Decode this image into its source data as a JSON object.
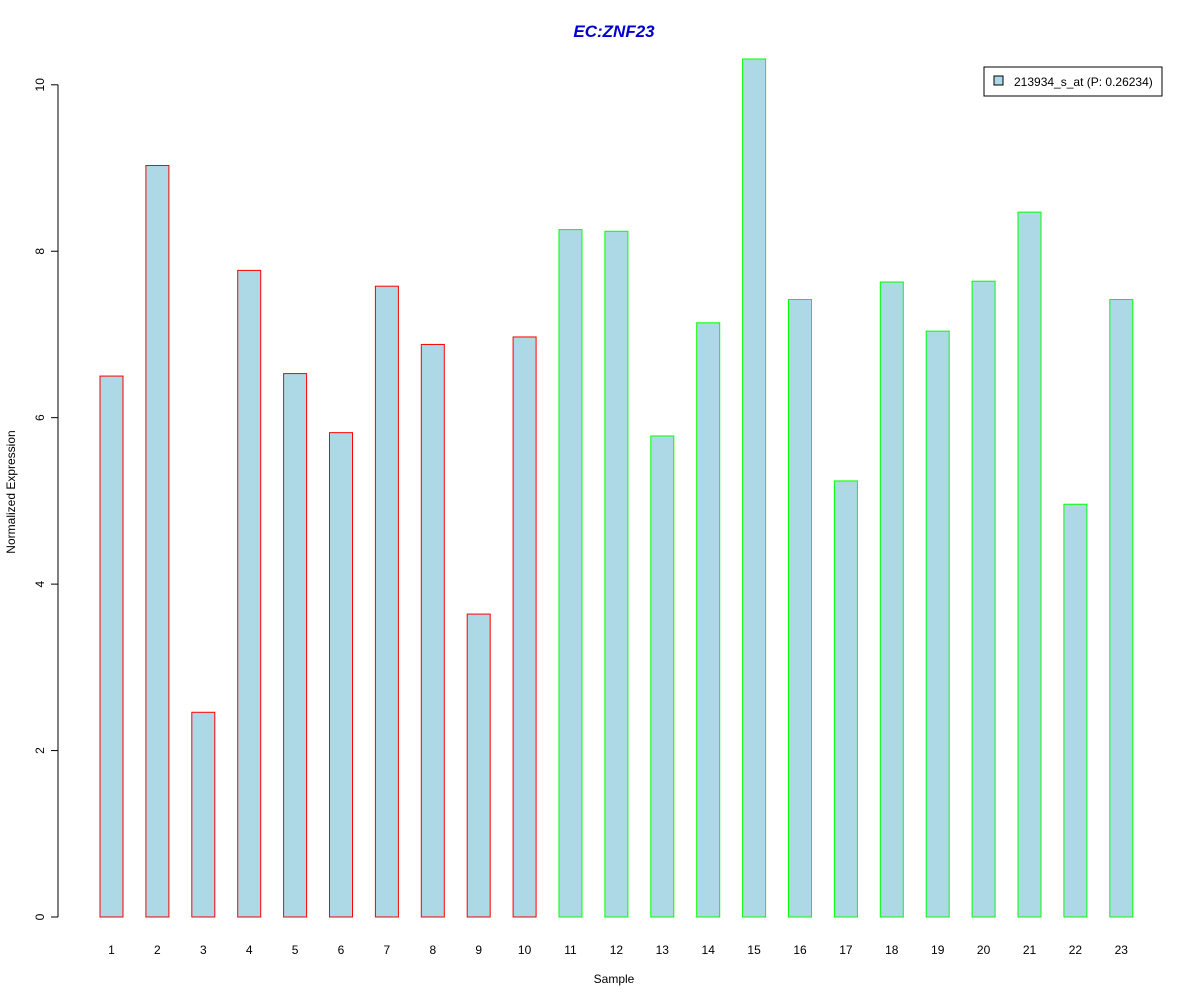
{
  "chart_data": {
    "type": "bar",
    "title": "EC:ZNF23",
    "xlabel": "Sample",
    "ylabel": "Normalized Expression",
    "categories": [
      "1",
      "2",
      "3",
      "4",
      "5",
      "6",
      "7",
      "8",
      "9",
      "10",
      "11",
      "12",
      "13",
      "14",
      "15",
      "16",
      "17",
      "18",
      "19",
      "20",
      "21",
      "22",
      "23"
    ],
    "series": [
      {
        "name": "213934_s_at (P: 0.26234)",
        "values": [
          6.5,
          9.03,
          2.46,
          7.77,
          6.53,
          5.82,
          7.58,
          6.88,
          3.64,
          6.97,
          8.26,
          8.24,
          5.78,
          7.14,
          10.31,
          7.42,
          5.24,
          7.63,
          7.04,
          7.64,
          8.47,
          4.96,
          7.42
        ]
      }
    ],
    "ylim": [
      0,
      10.31
    ],
    "yticks": [
      0,
      2,
      4,
      6,
      8,
      10
    ],
    "grid": false,
    "legend_position": "top-right",
    "colors": {
      "title": "#0000cc",
      "bar_fill": "#add8e6",
      "group1_border": "#ff0000",
      "group2_border": "#00ff00",
      "axis": "#000000"
    },
    "border_groups": [
      "group1",
      "group1",
      "group1",
      "group1",
      "group1",
      "group1",
      "group1",
      "group1",
      "group1",
      "group1",
      "group2",
      "group2",
      "group2",
      "group2",
      "group2",
      "group2",
      "group2",
      "group2",
      "group2",
      "group2",
      "group2",
      "group2",
      "group2"
    ]
  }
}
